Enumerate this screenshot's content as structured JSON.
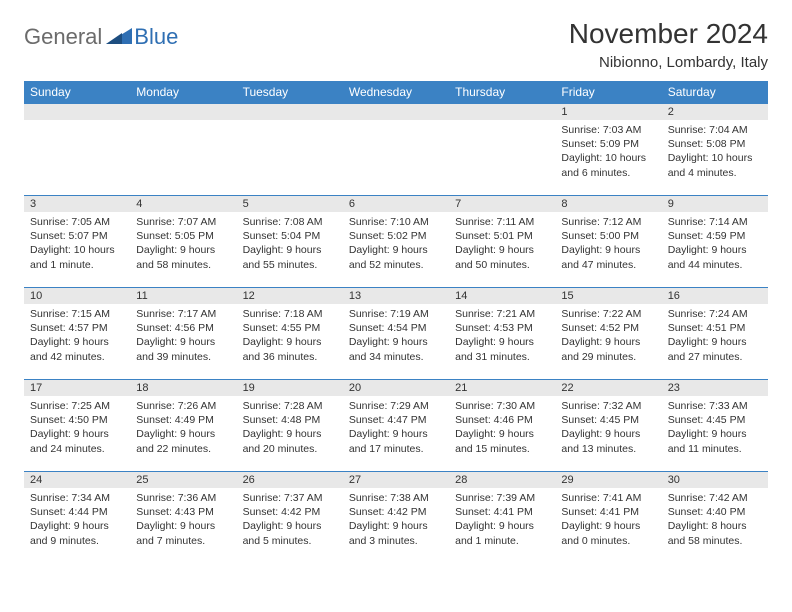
{
  "logo": {
    "general": "General",
    "blue": "Blue"
  },
  "title": "November 2024",
  "location": "Nibionno, Lombardy, Italy",
  "colors": {
    "header_bg": "#3b82c4",
    "header_text": "#ffffff",
    "daynum_bg": "#e8e8e8",
    "border": "#3b82c4",
    "text": "#333333",
    "logo_gray": "#6b6b6b",
    "logo_blue": "#2f6fb3"
  },
  "day_headers": [
    "Sunday",
    "Monday",
    "Tuesday",
    "Wednesday",
    "Thursday",
    "Friday",
    "Saturday"
  ],
  "weeks": [
    [
      {
        "num": "",
        "sunrise": "",
        "sunset": "",
        "daylight": ""
      },
      {
        "num": "",
        "sunrise": "",
        "sunset": "",
        "daylight": ""
      },
      {
        "num": "",
        "sunrise": "",
        "sunset": "",
        "daylight": ""
      },
      {
        "num": "",
        "sunrise": "",
        "sunset": "",
        "daylight": ""
      },
      {
        "num": "",
        "sunrise": "",
        "sunset": "",
        "daylight": ""
      },
      {
        "num": "1",
        "sunrise": "Sunrise: 7:03 AM",
        "sunset": "Sunset: 5:09 PM",
        "daylight": "Daylight: 10 hours and 6 minutes."
      },
      {
        "num": "2",
        "sunrise": "Sunrise: 7:04 AM",
        "sunset": "Sunset: 5:08 PM",
        "daylight": "Daylight: 10 hours and 4 minutes."
      }
    ],
    [
      {
        "num": "3",
        "sunrise": "Sunrise: 7:05 AM",
        "sunset": "Sunset: 5:07 PM",
        "daylight": "Daylight: 10 hours and 1 minute."
      },
      {
        "num": "4",
        "sunrise": "Sunrise: 7:07 AM",
        "sunset": "Sunset: 5:05 PM",
        "daylight": "Daylight: 9 hours and 58 minutes."
      },
      {
        "num": "5",
        "sunrise": "Sunrise: 7:08 AM",
        "sunset": "Sunset: 5:04 PM",
        "daylight": "Daylight: 9 hours and 55 minutes."
      },
      {
        "num": "6",
        "sunrise": "Sunrise: 7:10 AM",
        "sunset": "Sunset: 5:02 PM",
        "daylight": "Daylight: 9 hours and 52 minutes."
      },
      {
        "num": "7",
        "sunrise": "Sunrise: 7:11 AM",
        "sunset": "Sunset: 5:01 PM",
        "daylight": "Daylight: 9 hours and 50 minutes."
      },
      {
        "num": "8",
        "sunrise": "Sunrise: 7:12 AM",
        "sunset": "Sunset: 5:00 PM",
        "daylight": "Daylight: 9 hours and 47 minutes."
      },
      {
        "num": "9",
        "sunrise": "Sunrise: 7:14 AM",
        "sunset": "Sunset: 4:59 PM",
        "daylight": "Daylight: 9 hours and 44 minutes."
      }
    ],
    [
      {
        "num": "10",
        "sunrise": "Sunrise: 7:15 AM",
        "sunset": "Sunset: 4:57 PM",
        "daylight": "Daylight: 9 hours and 42 minutes."
      },
      {
        "num": "11",
        "sunrise": "Sunrise: 7:17 AM",
        "sunset": "Sunset: 4:56 PM",
        "daylight": "Daylight: 9 hours and 39 minutes."
      },
      {
        "num": "12",
        "sunrise": "Sunrise: 7:18 AM",
        "sunset": "Sunset: 4:55 PM",
        "daylight": "Daylight: 9 hours and 36 minutes."
      },
      {
        "num": "13",
        "sunrise": "Sunrise: 7:19 AM",
        "sunset": "Sunset: 4:54 PM",
        "daylight": "Daylight: 9 hours and 34 minutes."
      },
      {
        "num": "14",
        "sunrise": "Sunrise: 7:21 AM",
        "sunset": "Sunset: 4:53 PM",
        "daylight": "Daylight: 9 hours and 31 minutes."
      },
      {
        "num": "15",
        "sunrise": "Sunrise: 7:22 AM",
        "sunset": "Sunset: 4:52 PM",
        "daylight": "Daylight: 9 hours and 29 minutes."
      },
      {
        "num": "16",
        "sunrise": "Sunrise: 7:24 AM",
        "sunset": "Sunset: 4:51 PM",
        "daylight": "Daylight: 9 hours and 27 minutes."
      }
    ],
    [
      {
        "num": "17",
        "sunrise": "Sunrise: 7:25 AM",
        "sunset": "Sunset: 4:50 PM",
        "daylight": "Daylight: 9 hours and 24 minutes."
      },
      {
        "num": "18",
        "sunrise": "Sunrise: 7:26 AM",
        "sunset": "Sunset: 4:49 PM",
        "daylight": "Daylight: 9 hours and 22 minutes."
      },
      {
        "num": "19",
        "sunrise": "Sunrise: 7:28 AM",
        "sunset": "Sunset: 4:48 PM",
        "daylight": "Daylight: 9 hours and 20 minutes."
      },
      {
        "num": "20",
        "sunrise": "Sunrise: 7:29 AM",
        "sunset": "Sunset: 4:47 PM",
        "daylight": "Daylight: 9 hours and 17 minutes."
      },
      {
        "num": "21",
        "sunrise": "Sunrise: 7:30 AM",
        "sunset": "Sunset: 4:46 PM",
        "daylight": "Daylight: 9 hours and 15 minutes."
      },
      {
        "num": "22",
        "sunrise": "Sunrise: 7:32 AM",
        "sunset": "Sunset: 4:45 PM",
        "daylight": "Daylight: 9 hours and 13 minutes."
      },
      {
        "num": "23",
        "sunrise": "Sunrise: 7:33 AM",
        "sunset": "Sunset: 4:45 PM",
        "daylight": "Daylight: 9 hours and 11 minutes."
      }
    ],
    [
      {
        "num": "24",
        "sunrise": "Sunrise: 7:34 AM",
        "sunset": "Sunset: 4:44 PM",
        "daylight": "Daylight: 9 hours and 9 minutes."
      },
      {
        "num": "25",
        "sunrise": "Sunrise: 7:36 AM",
        "sunset": "Sunset: 4:43 PM",
        "daylight": "Daylight: 9 hours and 7 minutes."
      },
      {
        "num": "26",
        "sunrise": "Sunrise: 7:37 AM",
        "sunset": "Sunset: 4:42 PM",
        "daylight": "Daylight: 9 hours and 5 minutes."
      },
      {
        "num": "27",
        "sunrise": "Sunrise: 7:38 AM",
        "sunset": "Sunset: 4:42 PM",
        "daylight": "Daylight: 9 hours and 3 minutes."
      },
      {
        "num": "28",
        "sunrise": "Sunrise: 7:39 AM",
        "sunset": "Sunset: 4:41 PM",
        "daylight": "Daylight: 9 hours and 1 minute."
      },
      {
        "num": "29",
        "sunrise": "Sunrise: 7:41 AM",
        "sunset": "Sunset: 4:41 PM",
        "daylight": "Daylight: 9 hours and 0 minutes."
      },
      {
        "num": "30",
        "sunrise": "Sunrise: 7:42 AM",
        "sunset": "Sunset: 4:40 PM",
        "daylight": "Daylight: 8 hours and 58 minutes."
      }
    ]
  ]
}
